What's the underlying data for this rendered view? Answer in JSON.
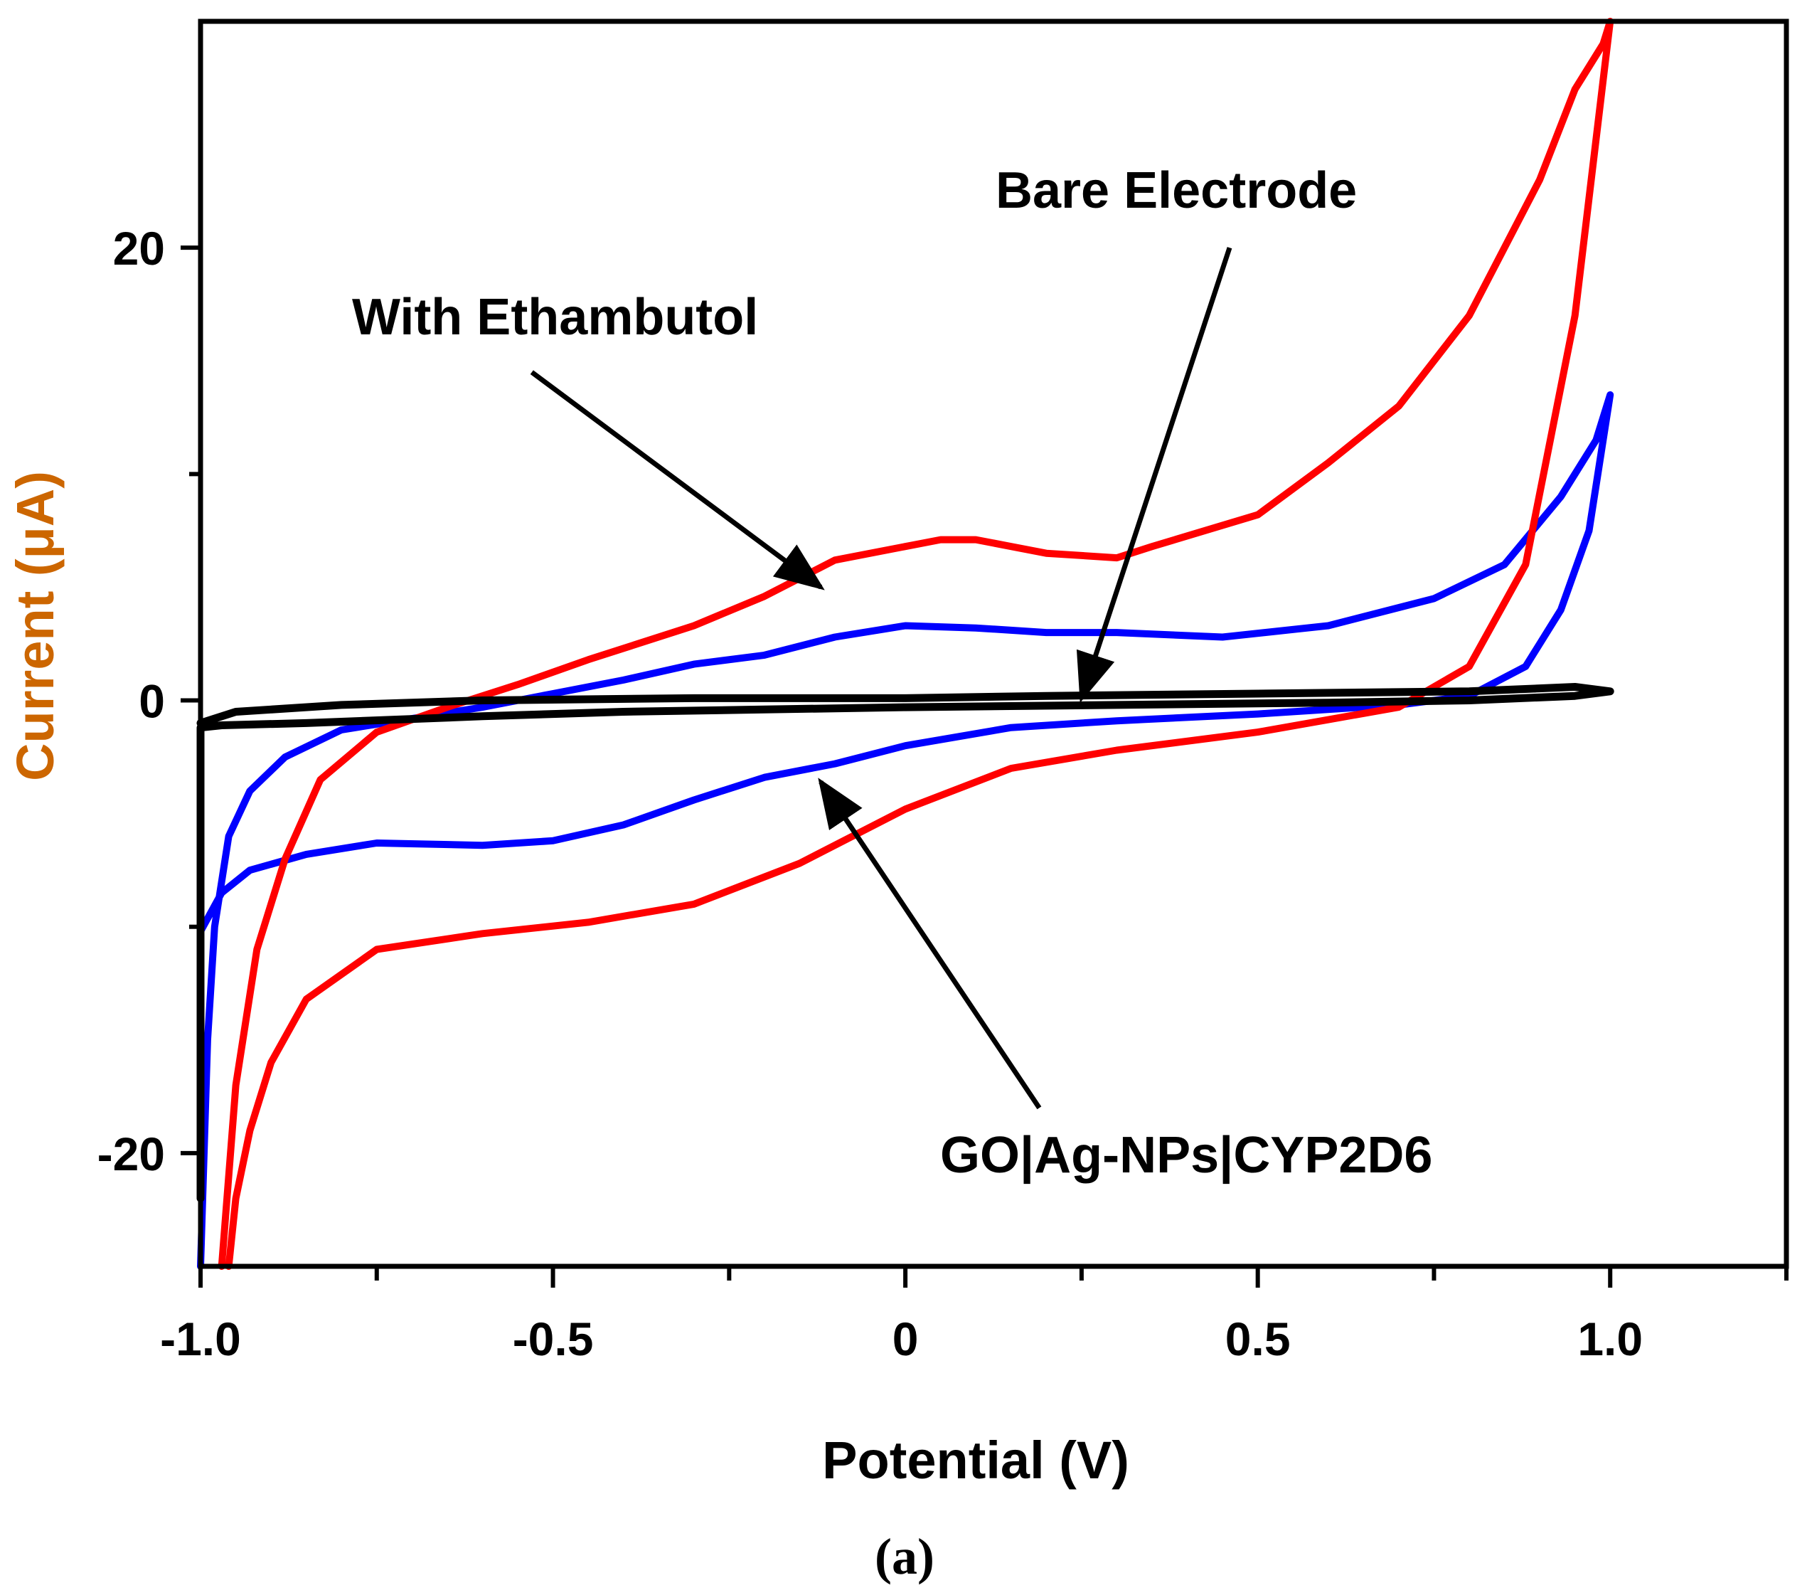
{
  "chart_data": {
    "type": "line",
    "title": "",
    "panel_label": "(a)",
    "xlabel": "Potential (V)",
    "ylabel": "Current (μA)",
    "xlim": [
      -1.0,
      1.25
    ],
    "ylim": [
      -25,
      30
    ],
    "x_ticks": [
      {
        "value": -1.0,
        "label": "-1.0"
      },
      {
        "value": -0.5,
        "label": "-0.5"
      },
      {
        "value": 0,
        "label": "0"
      },
      {
        "value": 0.5,
        "label": "0.5"
      },
      {
        "value": 1.0,
        "label": "1.0"
      }
    ],
    "y_ticks": [
      {
        "value": 20,
        "label": "20"
      },
      {
        "value": 0,
        "label": "0"
      },
      {
        "value": -20,
        "label": "-20"
      }
    ],
    "series": [
      {
        "name": "With Ethambutol",
        "color": "#ff0000",
        "points": [
          [
            -0.96,
            -25
          ],
          [
            -0.95,
            -22
          ],
          [
            -0.93,
            -19
          ],
          [
            -0.9,
            -16
          ],
          [
            -0.85,
            -13.2
          ],
          [
            -0.75,
            -11
          ],
          [
            -0.6,
            -10.3
          ],
          [
            -0.45,
            -9.8
          ],
          [
            -0.3,
            -9
          ],
          [
            -0.15,
            -7.2
          ],
          [
            0,
            -4.8
          ],
          [
            0.15,
            -3
          ],
          [
            0.3,
            -2.2
          ],
          [
            0.5,
            -1.4
          ],
          [
            0.7,
            -0.3
          ],
          [
            0.8,
            1.5
          ],
          [
            0.88,
            6
          ],
          [
            0.95,
            17
          ],
          [
            1.0,
            30
          ],
          [
            0.99,
            29
          ],
          [
            0.95,
            27
          ],
          [
            0.9,
            23
          ],
          [
            0.8,
            17
          ],
          [
            0.7,
            13
          ],
          [
            0.6,
            10.5
          ],
          [
            0.5,
            8.2
          ],
          [
            0.35,
            6.8
          ],
          [
            0.3,
            6.3
          ],
          [
            0.2,
            6.5
          ],
          [
            0.1,
            7.1
          ],
          [
            0.05,
            7.1
          ],
          [
            -0.1,
            6.2
          ],
          [
            -0.2,
            4.6
          ],
          [
            -0.3,
            3.3
          ],
          [
            -0.45,
            1.8
          ],
          [
            -0.55,
            0.7
          ],
          [
            -0.65,
            -0.3
          ],
          [
            -0.75,
            -1.4
          ],
          [
            -0.83,
            -3.5
          ],
          [
            -0.88,
            -7
          ],
          [
            -0.92,
            -11
          ],
          [
            -0.95,
            -17
          ],
          [
            -0.97,
            -25
          ]
        ]
      },
      {
        "name": "GO|Ag-NPs|CYP2D6",
        "color": "#0000ff",
        "points": [
          [
            -1.0,
            -10.2
          ],
          [
            -0.97,
            -8.5
          ],
          [
            -0.93,
            -7.5
          ],
          [
            -0.85,
            -6.8
          ],
          [
            -0.75,
            -6.3
          ],
          [
            -0.6,
            -6.4
          ],
          [
            -0.5,
            -6.2
          ],
          [
            -0.4,
            -5.5
          ],
          [
            -0.3,
            -4.4
          ],
          [
            -0.2,
            -3.4
          ],
          [
            -0.1,
            -2.8
          ],
          [
            0,
            -2
          ],
          [
            0.15,
            -1.2
          ],
          [
            0.3,
            -0.9
          ],
          [
            0.5,
            -0.6
          ],
          [
            0.7,
            -0.2
          ],
          [
            0.8,
            0.2
          ],
          [
            0.88,
            1.5
          ],
          [
            0.93,
            4
          ],
          [
            0.97,
            7.5
          ],
          [
            1.0,
            13.5
          ],
          [
            0.98,
            11.5
          ],
          [
            0.93,
            9
          ],
          [
            0.85,
            6
          ],
          [
            0.75,
            4.5
          ],
          [
            0.6,
            3.3
          ],
          [
            0.45,
            2.8
          ],
          [
            0.3,
            3
          ],
          [
            0.2,
            3
          ],
          [
            0.1,
            3.2
          ],
          [
            0.0,
            3.3
          ],
          [
            -0.1,
            2.8
          ],
          [
            -0.2,
            2
          ],
          [
            -0.3,
            1.6
          ],
          [
            -0.4,
            0.9
          ],
          [
            -0.5,
            0.3
          ],
          [
            -0.6,
            -0.3
          ],
          [
            -0.7,
            -0.8
          ],
          [
            -0.8,
            -1.3
          ],
          [
            -0.88,
            -2.5
          ],
          [
            -0.93,
            -4
          ],
          [
            -0.96,
            -6
          ],
          [
            -0.98,
            -10
          ],
          [
            -0.99,
            -15
          ],
          [
            -1.0,
            -25
          ]
        ]
      },
      {
        "name": "Bare Electrode",
        "color": "#000000",
        "points": [
          [
            -1.0,
            -22
          ],
          [
            -1.0,
            -5
          ],
          [
            -1.0,
            -1.2
          ],
          [
            -0.97,
            -1.1
          ],
          [
            -0.85,
            -1.0
          ],
          [
            -0.6,
            -0.7
          ],
          [
            -0.4,
            -0.5
          ],
          [
            -0.2,
            -0.4
          ],
          [
            0,
            -0.3
          ],
          [
            0.3,
            -0.2
          ],
          [
            0.6,
            -0.1
          ],
          [
            0.8,
            0
          ],
          [
            0.95,
            0.2
          ],
          [
            1.0,
            0.4
          ],
          [
            0.95,
            0.6
          ],
          [
            0.8,
            0.4
          ],
          [
            0.5,
            0.3
          ],
          [
            0.2,
            0.2
          ],
          [
            0,
            0.1
          ],
          [
            -0.3,
            0.1
          ],
          [
            -0.6,
            0
          ],
          [
            -0.8,
            -0.2
          ],
          [
            -0.95,
            -0.5
          ],
          [
            -1.0,
            -1.0
          ]
        ]
      }
    ],
    "annotations": [
      {
        "text": "Bare Electrode",
        "target": [
          0.25,
          0.1
        ],
        "from": [
          0.46,
          20
        ]
      },
      {
        "text": "With Ethambutol",
        "target": [
          -0.12,
          5.0
        ],
        "from": [
          -0.53,
          14.5
        ]
      },
      {
        "text": "GO|Ag-NPs|CYP2D6",
        "target": [
          -0.12,
          -3.6
        ],
        "from": [
          0.19,
          -18
        ]
      }
    ]
  }
}
